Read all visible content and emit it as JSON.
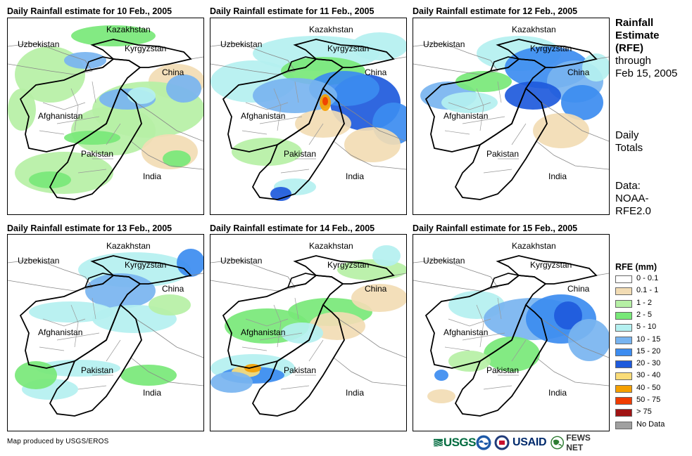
{
  "panels": [
    {
      "title": "Daily Rainfall estimate for 10 Feb., 2005"
    },
    {
      "title": "Daily Rainfall estimate for 11 Feb., 2005"
    },
    {
      "title": "Daily Rainfall estimate for 12 Feb., 2005"
    },
    {
      "title": "Daily Rainfall estimate for 13 Feb., 2005"
    },
    {
      "title": "Daily Rainfall estimate for 14 Feb., 2005"
    },
    {
      "title": "Daily Rainfall estimate for 15 Feb., 2005"
    }
  ],
  "map_labels": {
    "kazakhstan": "Kazakhstan",
    "uzbekistan": "Uzbekistan",
    "kyrgyzstan": "Kyrgyzstan",
    "china": "China",
    "afghanistan": "Afghanistan",
    "pakistan": "Pakistan",
    "india": "India"
  },
  "sidebar": {
    "title_line1": "Rainfall",
    "title_line2": "Estimate",
    "title_line3": "(RFE)",
    "through": "through",
    "date": "Feb 15, 2005",
    "daily": "Daily",
    "totals": "Totals",
    "data_label": "Data:",
    "data_source1": "NOAA-",
    "data_source2": "RFE2.0"
  },
  "legend": {
    "title": "RFE (mm)",
    "items": [
      {
        "label": "0 - 0.1",
        "color": "#ffffff"
      },
      {
        "label": "0.1 - 1",
        "color": "#f2dcb4"
      },
      {
        "label": "1 - 2",
        "color": "#b6f0a5"
      },
      {
        "label": "2 - 5",
        "color": "#78e878"
      },
      {
        "label": "5 - 10",
        "color": "#b4f0f0"
      },
      {
        "label": "10 - 15",
        "color": "#78b4f0"
      },
      {
        "label": "15 - 20",
        "color": "#3c8cf0"
      },
      {
        "label": "20 - 30",
        "color": "#1e5adc"
      },
      {
        "label": "30 - 40",
        "color": "#fadc78"
      },
      {
        "label": "40 - 50",
        "color": "#f5a000"
      },
      {
        "label": "50 - 75",
        "color": "#f03c00"
      },
      {
        "label": "> 75",
        "color": "#a01414"
      },
      {
        "label": "No Data",
        "color": "#a0a0a0"
      }
    ]
  },
  "footer": {
    "credit": "Map produced by USGS/EROS",
    "logos": [
      {
        "name": "usgs-logo",
        "text": "USGS"
      },
      {
        "name": "noaa-logo",
        "text": ""
      },
      {
        "name": "dhs-seal",
        "text": ""
      },
      {
        "name": "usaid-logo",
        "text": "USAID"
      },
      {
        "name": "fewsnet-logo",
        "text": "FEWS NET"
      }
    ]
  }
}
